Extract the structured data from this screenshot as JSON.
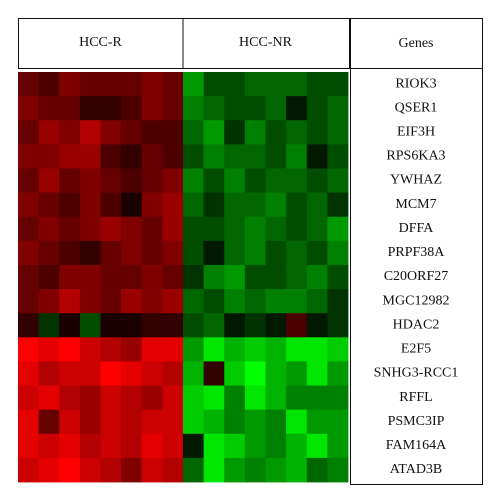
{
  "chart_data": {
    "type": "heatmap",
    "groups": [
      "HCC-R",
      "HCC-NR"
    ],
    "row_header": "Genes",
    "rows": [
      "RIOK3",
      "QSER1",
      "EIF3H",
      "RPS6KA3",
      "YWHAZ",
      "MCM7",
      "DFFA",
      "PRPF38A",
      "C20ORF27",
      "MGC12982",
      "HDAC2",
      "E2F5",
      "SNHG3-RCC1",
      "RFFL",
      "PSMC3IP",
      "FAM164A",
      "ATAD3B"
    ],
    "clim": [
      -1,
      1
    ],
    "high_color": "#ff0000",
    "mid_color": "#000000",
    "low_color": "#00ff00",
    "values": [
      [
        0.4,
        0.3,
        0.5,
        0.4,
        0.4,
        0.4,
        0.5,
        0.4,
        -0.6,
        -0.3,
        -0.3,
        -0.4,
        -0.4,
        -0.4,
        -0.3,
        -0.3
      ],
      [
        0.5,
        0.4,
        0.4,
        0.2,
        0.2,
        0.3,
        0.5,
        0.4,
        -0.5,
        -0.4,
        -0.3,
        -0.3,
        -0.4,
        -0.1,
        -0.3,
        -0.4
      ],
      [
        0.4,
        0.6,
        0.5,
        0.7,
        0.5,
        0.4,
        0.3,
        0.3,
        -0.4,
        -0.6,
        -0.2,
        -0.5,
        -0.3,
        -0.4,
        -0.3,
        -0.4
      ],
      [
        0.5,
        0.5,
        0.6,
        0.6,
        0.3,
        0.2,
        0.4,
        0.3,
        -0.3,
        -0.5,
        -0.4,
        -0.4,
        -0.3,
        -0.5,
        -0.1,
        -0.3
      ],
      [
        0.4,
        0.6,
        0.4,
        0.5,
        0.4,
        0.3,
        0.4,
        0.5,
        -0.5,
        -0.3,
        -0.5,
        -0.3,
        -0.4,
        -0.4,
        -0.3,
        -0.4
      ],
      [
        0.5,
        0.4,
        0.3,
        0.5,
        0.3,
        0.1,
        0.5,
        0.6,
        -0.4,
        -0.2,
        -0.4,
        -0.4,
        -0.5,
        -0.3,
        -0.4,
        -0.2
      ],
      [
        0.4,
        0.5,
        0.4,
        0.5,
        0.6,
        0.5,
        0.4,
        0.6,
        -0.3,
        -0.3,
        -0.4,
        -0.5,
        -0.4,
        -0.3,
        -0.4,
        -0.6
      ],
      [
        0.5,
        0.4,
        0.3,
        0.2,
        0.4,
        0.5,
        0.4,
        0.5,
        -0.3,
        -0.1,
        -0.4,
        -0.5,
        -0.3,
        -0.4,
        -0.3,
        -0.5
      ],
      [
        0.4,
        0.3,
        0.5,
        0.5,
        0.4,
        0.4,
        0.5,
        0.4,
        -0.2,
        -0.5,
        -0.6,
        -0.3,
        -0.3,
        -0.4,
        -0.5,
        -0.3
      ],
      [
        0.4,
        0.5,
        0.7,
        0.5,
        0.4,
        0.6,
        0.5,
        0.6,
        -0.4,
        -0.3,
        -0.5,
        -0.4,
        -0.5,
        -0.5,
        -0.4,
        -0.2
      ],
      [
        0.2,
        -0.2,
        0.1,
        -0.3,
        0.1,
        0.1,
        0.2,
        0.2,
        -0.3,
        -0.4,
        -0.1,
        -0.2,
        -0.1,
        0.3,
        -0.1,
        -0.2
      ],
      [
        1,
        0.9,
        1,
        0.8,
        0.7,
        0.6,
        0.9,
        0.9,
        -0.6,
        -0.9,
        -0.7,
        -0.8,
        -0.7,
        -0.9,
        -0.9,
        -0.8
      ],
      [
        0.9,
        0.7,
        0.8,
        0.8,
        1,
        0.9,
        0.8,
        0.7,
        -0.7,
        0.2,
        -0.8,
        -1,
        -0.7,
        -0.6,
        -0.9,
        -0.6
      ],
      [
        0.8,
        0.9,
        0.7,
        0.6,
        0.8,
        0.7,
        0.6,
        0.8,
        -0.8,
        -0.9,
        -0.5,
        -0.9,
        -0.7,
        -0.5,
        -0.5,
        -0.5
      ],
      [
        0.9,
        0.4,
        0.8,
        0.6,
        0.8,
        0.7,
        0.8,
        0.8,
        -0.8,
        -0.7,
        -0.5,
        -0.6,
        -0.5,
        -0.9,
        -0.6,
        -0.6
      ],
      [
        0.9,
        0.8,
        0.9,
        0.7,
        0.8,
        0.7,
        0.9,
        0.8,
        -0.1,
        -0.9,
        -0.8,
        -0.6,
        -0.5,
        -0.7,
        -0.9,
        -0.6
      ],
      [
        0.8,
        0.9,
        1,
        0.8,
        0.7,
        0.5,
        0.8,
        0.7,
        -0.4,
        -0.9,
        -0.6,
        -0.5,
        -0.6,
        -0.7,
        -0.4,
        -0.5
      ]
    ]
  }
}
